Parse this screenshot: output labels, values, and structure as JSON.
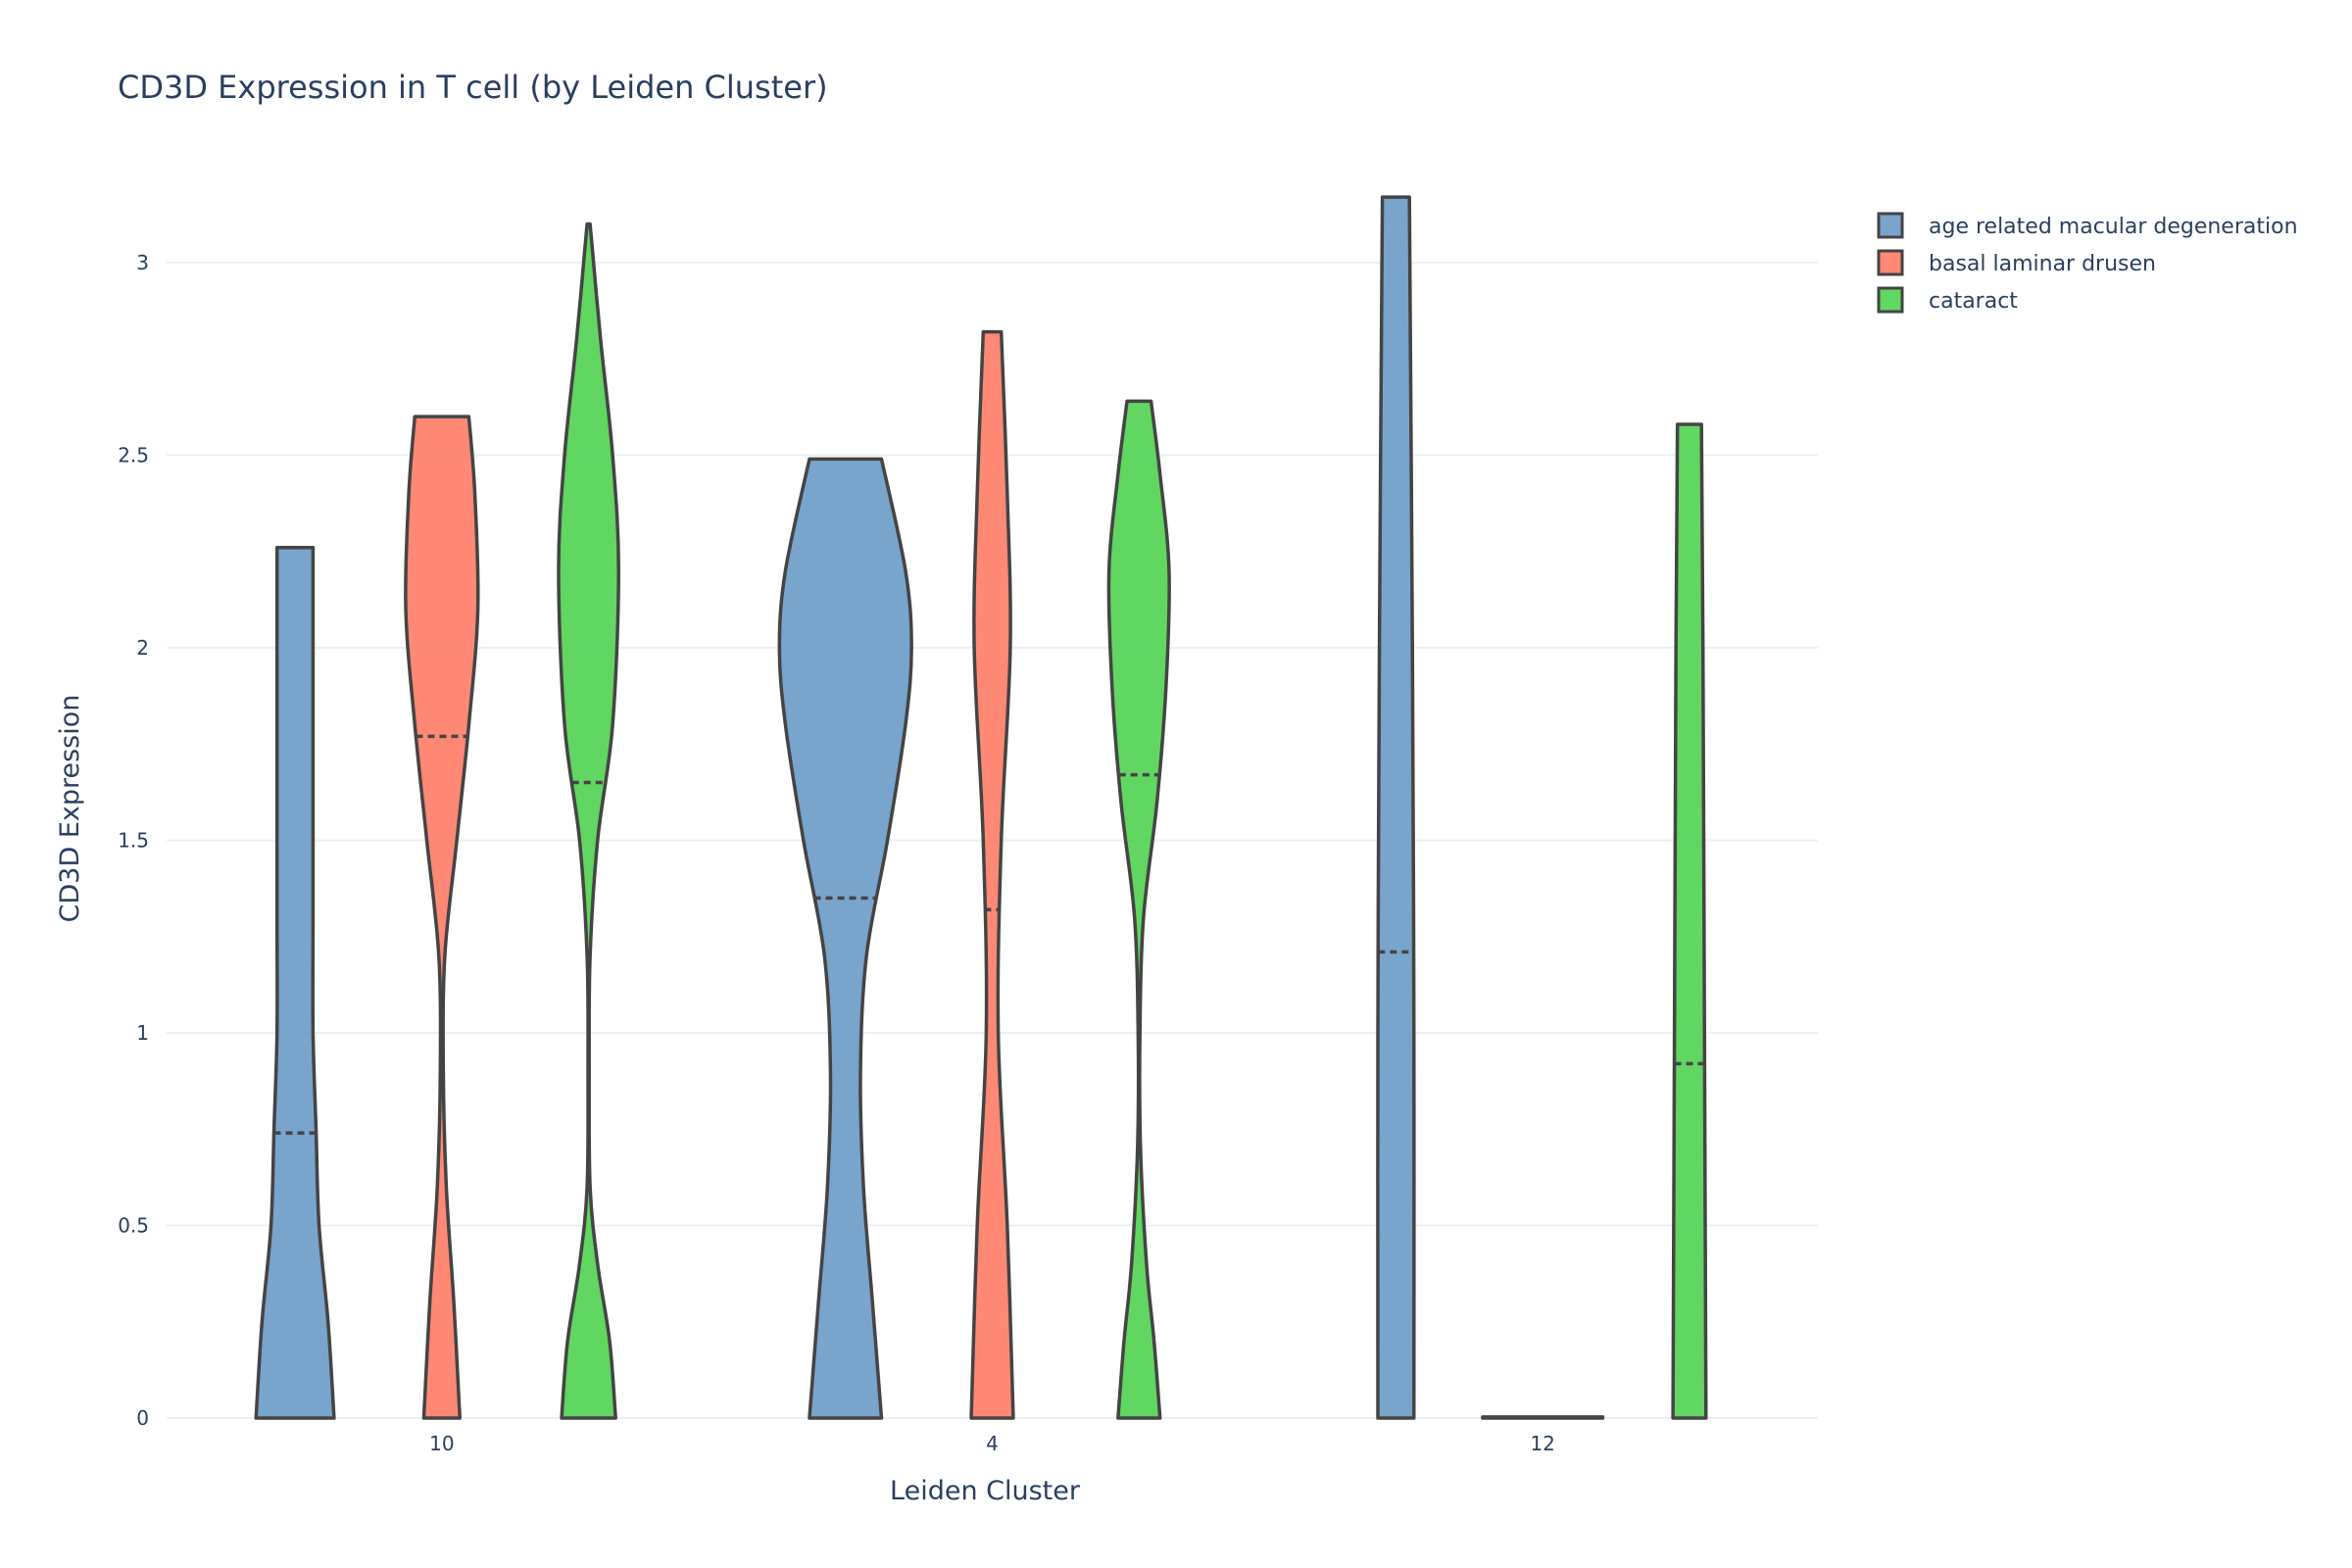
{
  "chart_data": {
    "type": "violin",
    "title": "CD3D Expression in T cell (by Leiden Cluster)",
    "xlabel": "Leiden Cluster",
    "ylabel": "CD3D Expression",
    "categories": [
      "10",
      "4",
      "12"
    ],
    "ylim": [
      0,
      3.3
    ],
    "yticks": [
      0,
      0.5,
      1,
      1.5,
      2,
      2.5,
      3
    ],
    "ytick_labels": [
      "0",
      "0.5",
      "1",
      "1.5",
      "2",
      "2.5",
      "3"
    ],
    "grid": true,
    "legend_position": "top-right",
    "series": [
      {
        "name": "age related macular degeneration",
        "color": "#6a9ac7",
        "violins": [
          {
            "category": "10",
            "min": 0,
            "max": 2.26,
            "median": 0.74,
            "profile": [
              [
                0,
                0.13
              ],
              [
                0.25,
                0.11
              ],
              [
                0.5,
                0.08
              ],
              [
                0.75,
                0.07
              ],
              [
                1.0,
                0.06
              ],
              [
                1.3,
                0.06
              ],
              [
                1.6,
                0.06
              ],
              [
                2.0,
                0.06
              ],
              [
                2.26,
                0.06
              ]
            ]
          },
          {
            "category": "4",
            "min": 0,
            "max": 2.49,
            "median": 1.35,
            "profile": [
              [
                0,
                0.12
              ],
              [
                0.3,
                0.09
              ],
              [
                0.6,
                0.06
              ],
              [
                0.9,
                0.05
              ],
              [
                1.2,
                0.07
              ],
              [
                1.5,
                0.14
              ],
              [
                1.8,
                0.2
              ],
              [
                2.0,
                0.22
              ],
              [
                2.2,
                0.2
              ],
              [
                2.49,
                0.12
              ]
            ]
          },
          {
            "category": "12",
            "min": 0,
            "max": 3.17,
            "median": 1.21,
            "profile": [
              [
                0,
                0.06
              ],
              [
                1.0,
                0.06
              ],
              [
                2.0,
                0.055
              ],
              [
                3.17,
                0.045
              ]
            ]
          }
        ]
      },
      {
        "name": "basal laminar drusen",
        "color": "#ff7c65",
        "violins": [
          {
            "category": "10",
            "min": 0,
            "max": 2.6,
            "median": 1.77,
            "profile": [
              [
                0,
                0.06
              ],
              [
                0.3,
                0.04
              ],
              [
                0.6,
                0.015
              ],
              [
                0.9,
                0.005
              ],
              [
                1.2,
                0.01
              ],
              [
                1.5,
                0.05
              ],
              [
                1.8,
                0.09
              ],
              [
                2.1,
                0.12
              ],
              [
                2.4,
                0.11
              ],
              [
                2.6,
                0.09
              ]
            ]
          },
          {
            "category": "4",
            "min": 0,
            "max": 2.82,
            "median": 1.32,
            "profile": [
              [
                0,
                0.07
              ],
              [
                0.5,
                0.05
              ],
              [
                1.0,
                0.02
              ],
              [
                1.5,
                0.03
              ],
              [
                2.0,
                0.06
              ],
              [
                2.4,
                0.05
              ],
              [
                2.82,
                0.03
              ]
            ]
          },
          {
            "category": "12",
            "min": 0,
            "max": 0.003,
            "median": 0,
            "profile": [
              [
                0,
                0.2
              ],
              [
                0.003,
                0.2
              ]
            ]
          }
        ]
      },
      {
        "name": "cataract",
        "color": "#50d250",
        "violins": [
          {
            "category": "10",
            "min": 0,
            "max": 3.1,
            "median": 1.65,
            "profile": [
              [
                0,
                0.09
              ],
              [
                0.2,
                0.07
              ],
              [
                0.4,
                0.03
              ],
              [
                0.6,
                0.005
              ],
              [
                0.9,
                0.002
              ],
              [
                1.2,
                0.005
              ],
              [
                1.5,
                0.03
              ],
              [
                1.8,
                0.08
              ],
              [
                2.2,
                0.1
              ],
              [
                2.5,
                0.08
              ],
              [
                2.8,
                0.04
              ],
              [
                3.1,
                0.005
              ]
            ]
          },
          {
            "category": "4",
            "min": 0,
            "max": 2.64,
            "median": 1.67,
            "profile": [
              [
                0,
                0.07
              ],
              [
                0.2,
                0.05
              ],
              [
                0.4,
                0.025
              ],
              [
                0.7,
                0.005
              ],
              [
                1.0,
                0.003
              ],
              [
                1.3,
                0.015
              ],
              [
                1.6,
                0.06
              ],
              [
                1.9,
                0.09
              ],
              [
                2.2,
                0.1
              ],
              [
                2.45,
                0.07
              ],
              [
                2.64,
                0.04
              ]
            ]
          },
          {
            "category": "12",
            "min": 0,
            "max": 2.58,
            "median": 0.92,
            "profile": [
              [
                0,
                0.055
              ],
              [
                1.0,
                0.05
              ],
              [
                2.0,
                0.045
              ],
              [
                2.58,
                0.04
              ]
            ]
          }
        ]
      }
    ]
  }
}
